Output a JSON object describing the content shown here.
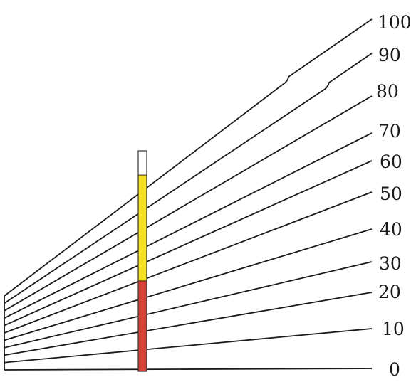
{
  "scale": {
    "labels": [
      "0",
      "10",
      "20",
      "30",
      "40",
      "50",
      "60",
      "70",
      "80",
      "90",
      "100"
    ]
  },
  "tube": {
    "red_fill_fraction": 0.41,
    "yellow_fill_fraction": 0.48,
    "colors": {
      "red": "#d94036",
      "yellow": "#f5e21d",
      "empty": "#ffffff",
      "outline": "#333333"
    }
  },
  "colors": {
    "lines": "#1a1a1a",
    "background": "#ffffff"
  }
}
